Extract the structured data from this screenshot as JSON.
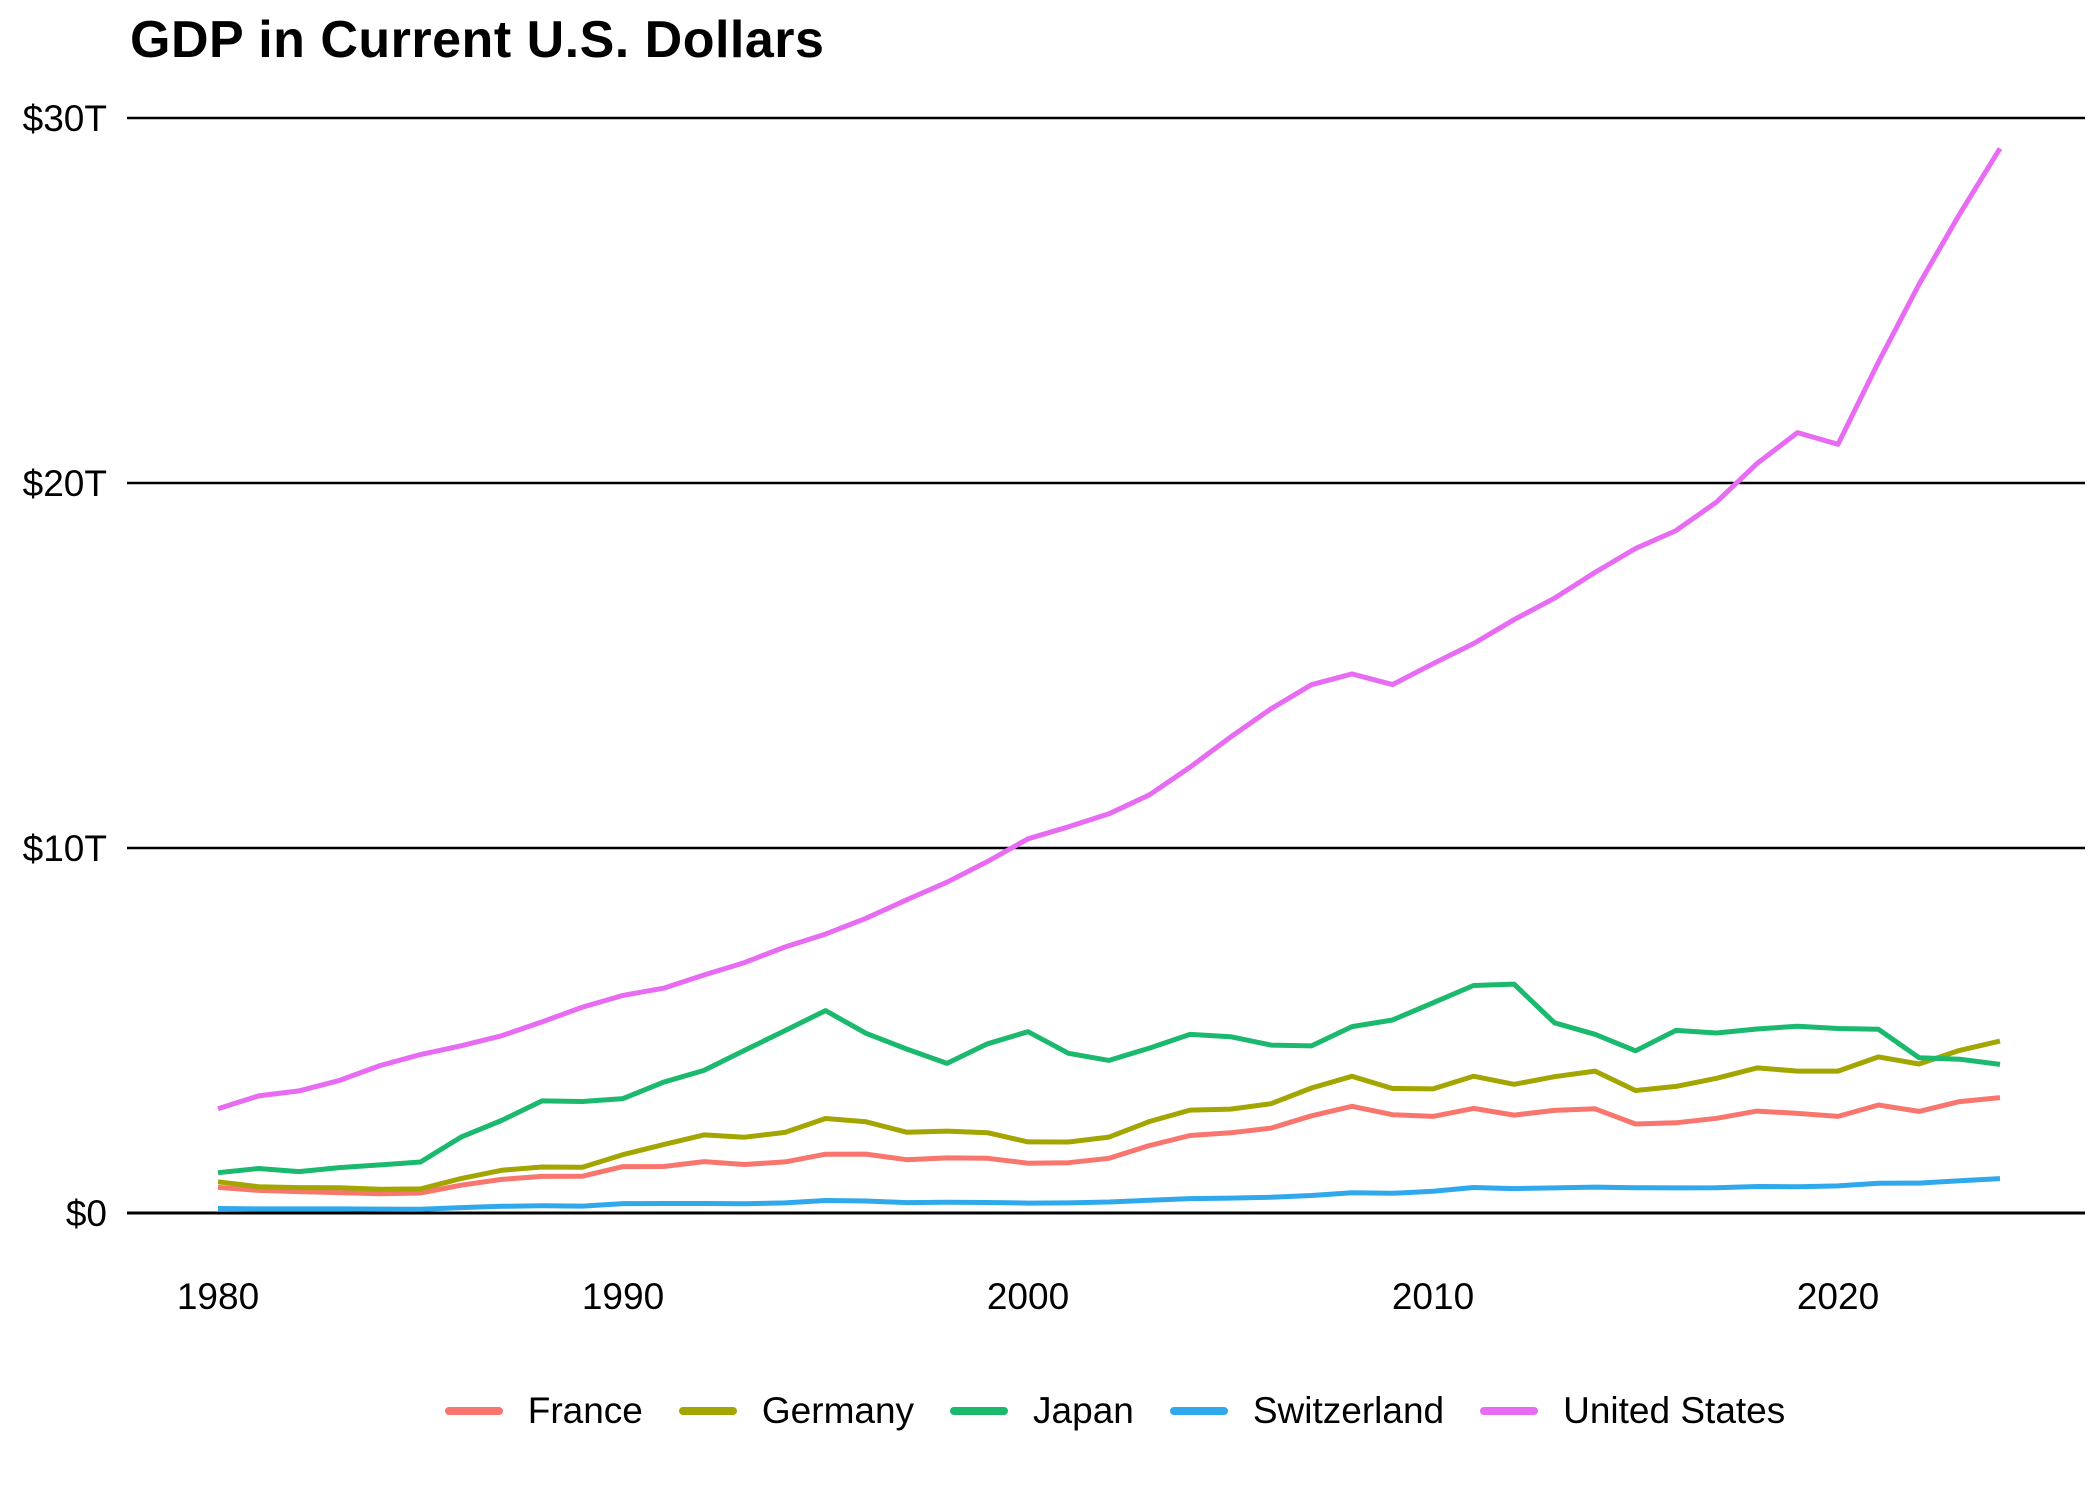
{
  "title": "GDP in Current U.S. Dollars",
  "chart_data": {
    "type": "line",
    "title": "GDP in Current U.S. Dollars",
    "xlabel": "",
    "ylabel": "",
    "units": "trillions of current U.S. dollars",
    "xlim": [
      1980,
      2024
    ],
    "ylim": [
      0,
      30
    ],
    "grid": "horizontal",
    "legend_position": "bottom",
    "background_color": "#ffffff",
    "text_color": "#000000",
    "grid_color": "#000000",
    "y_ticks": [
      {
        "value": 0,
        "label": "$0"
      },
      {
        "value": 10,
        "label": "$10T"
      },
      {
        "value": 20,
        "label": "$20T"
      },
      {
        "value": 30,
        "label": "$30T"
      }
    ],
    "x_ticks": [
      {
        "value": 1980,
        "label": "1980"
      },
      {
        "value": 1990,
        "label": "1990"
      },
      {
        "value": 2000,
        "label": "2000"
      },
      {
        "value": 2010,
        "label": "2010"
      },
      {
        "value": 2020,
        "label": "2020"
      }
    ],
    "x": [
      1980,
      1981,
      1982,
      1983,
      1984,
      1985,
      1986,
      1987,
      1988,
      1989,
      1990,
      1991,
      1992,
      1993,
      1994,
      1995,
      1996,
      1997,
      1998,
      1999,
      2000,
      2001,
      2002,
      2003,
      2004,
      2005,
      2006,
      2007,
      2008,
      2009,
      2010,
      2011,
      2012,
      2013,
      2014,
      2015,
      2016,
      2017,
      2018,
      2019,
      2020,
      2021,
      2022,
      2023,
      2024
    ],
    "series": [
      {
        "name": "France",
        "color": "#F8766D",
        "values": [
          0.702,
          0.618,
          0.585,
          0.56,
          0.527,
          0.549,
          0.762,
          0.921,
          1.002,
          1.007,
          1.272,
          1.275,
          1.408,
          1.33,
          1.401,
          1.61,
          1.614,
          1.46,
          1.51,
          1.5,
          1.365,
          1.377,
          1.5,
          1.848,
          2.124,
          2.198,
          2.325,
          2.663,
          2.923,
          2.694,
          2.646,
          2.865,
          2.683,
          2.811,
          2.856,
          2.439,
          2.472,
          2.595,
          2.791,
          2.729,
          2.647,
          2.959,
          2.784,
          3.052,
          3.162
        ]
      },
      {
        "name": "Germany",
        "color": "#A3A500",
        "values": [
          0.854,
          0.72,
          0.696,
          0.692,
          0.652,
          0.66,
          0.943,
          1.171,
          1.26,
          1.252,
          1.599,
          1.874,
          2.139,
          2.077,
          2.209,
          2.588,
          2.499,
          2.213,
          2.243,
          2.199,
          1.948,
          1.946,
          2.079,
          2.506,
          2.819,
          2.846,
          2.994,
          3.425,
          3.745,
          3.411,
          3.399,
          3.749,
          3.527,
          3.733,
          3.889,
          3.357,
          3.469,
          3.69,
          3.975,
          3.889,
          3.887,
          4.278,
          4.082,
          4.456,
          4.71
        ]
      },
      {
        "name": "Japan",
        "color": "#1BB96E",
        "values": [
          1.105,
          1.218,
          1.134,
          1.243,
          1.318,
          1.398,
          2.079,
          2.533,
          3.071,
          3.054,
          3.133,
          3.584,
          3.908,
          4.454,
          4.998,
          5.546,
          4.924,
          4.492,
          4.098,
          4.636,
          4.968,
          4.374,
          4.182,
          4.519,
          4.893,
          4.831,
          4.601,
          4.579,
          5.106,
          5.289,
          5.759,
          6.233,
          6.272,
          5.212,
          4.897,
          4.444,
          5.004,
          4.931,
          5.041,
          5.118,
          5.056,
          5.034,
          4.256,
          4.213,
          4.07
        ]
      },
      {
        "name": "Switzerland",
        "color": "#2FA9EC",
        "values": [
          0.123,
          0.111,
          0.113,
          0.112,
          0.106,
          0.105,
          0.148,
          0.184,
          0.198,
          0.19,
          0.258,
          0.26,
          0.259,
          0.253,
          0.278,
          0.342,
          0.33,
          0.285,
          0.295,
          0.288,
          0.272,
          0.278,
          0.301,
          0.352,
          0.394,
          0.408,
          0.43,
          0.479,
          0.554,
          0.541,
          0.598,
          0.699,
          0.668,
          0.688,
          0.709,
          0.694,
          0.687,
          0.694,
          0.725,
          0.721,
          0.742,
          0.813,
          0.818,
          0.885,
          0.942
        ]
      },
      {
        "name": "United States",
        "color": "#E76BF3",
        "values": [
          2.857,
          3.207,
          3.344,
          3.634,
          4.038,
          4.339,
          4.58,
          4.855,
          5.236,
          5.642,
          5.963,
          6.158,
          6.52,
          6.859,
          7.287,
          7.64,
          8.073,
          8.578,
          9.063,
          9.631,
          10.251,
          10.582,
          10.936,
          11.458,
          12.214,
          13.037,
          13.815,
          14.474,
          14.77,
          14.478,
          15.049,
          15.6,
          16.254,
          16.844,
          17.551,
          18.206,
          18.695,
          19.477,
          20.533,
          21.381,
          21.06,
          23.315,
          25.44,
          27.361,
          29.168
        ]
      }
    ]
  }
}
